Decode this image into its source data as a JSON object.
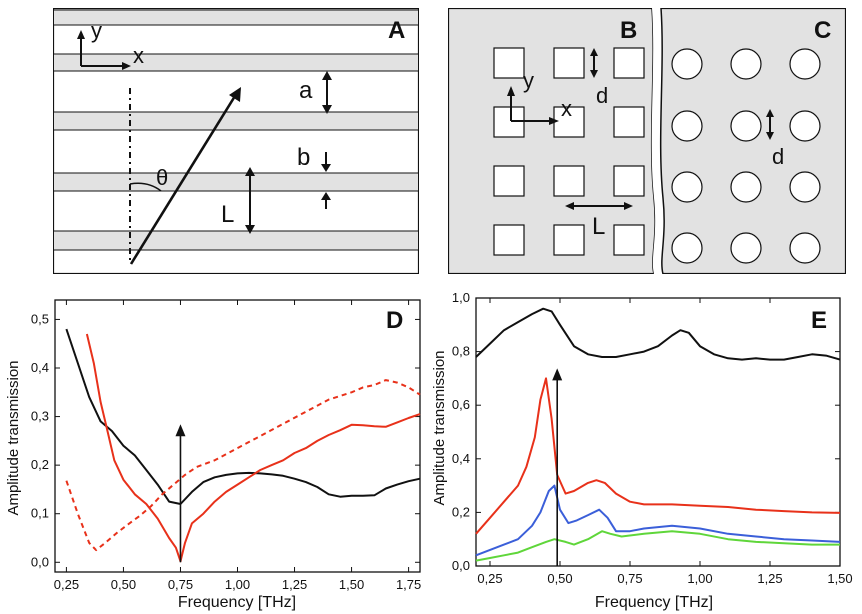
{
  "panel_a": {
    "letter": "A",
    "axis_y": "y",
    "axis_x": "x",
    "label_a": "a",
    "label_b": "b",
    "label_L": "L",
    "label_theta": "θ",
    "stripe_color": "#e2e2e2"
  },
  "panel_bc": {
    "letter_b": "B",
    "letter_c": "C",
    "axis_y": "y",
    "axis_x": "x",
    "label_d_square": "d",
    "label_d_circle": "d",
    "label_L": "L",
    "background_color": "#e2e2e2",
    "hole_color": "#ffffff"
  },
  "chart_data": [
    {
      "type": "line",
      "panel": "D",
      "letter": "D",
      "xlabel": "Frequency [THz]",
      "ylabel": "Amplitude transmission",
      "xlim": [
        0.2,
        1.8
      ],
      "ylim": [
        -0.02,
        0.54
      ],
      "xticks": [
        0.25,
        0.5,
        0.75,
        1.0,
        1.25,
        1.5,
        1.75
      ],
      "xtick_labels": [
        "0,25",
        "0,50",
        "0,75",
        "1,00",
        "1,25",
        "1,50",
        "1,75"
      ],
      "yticks": [
        0.0,
        0.1,
        0.2,
        0.3,
        0.4,
        0.5
      ],
      "ytick_labels": [
        "0,0",
        "0,1",
        "0,2",
        "0,3",
        "0,4",
        "0,5"
      ],
      "arrow": {
        "x": 0.75,
        "y_from": 0.0,
        "y_to": 0.28
      },
      "series": [
        {
          "name": "black",
          "color": "#111111",
          "dash": "",
          "x": [
            0.25,
            0.3,
            0.35,
            0.4,
            0.45,
            0.5,
            0.55,
            0.6,
            0.65,
            0.7,
            0.75,
            0.8,
            0.85,
            0.9,
            0.95,
            1.0,
            1.05,
            1.1,
            1.15,
            1.2,
            1.25,
            1.3,
            1.35,
            1.4,
            1.45,
            1.5,
            1.55,
            1.6,
            1.65,
            1.7,
            1.75,
            1.8
          ],
          "y": [
            0.48,
            0.41,
            0.34,
            0.29,
            0.27,
            0.24,
            0.22,
            0.19,
            0.16,
            0.125,
            0.12,
            0.145,
            0.165,
            0.175,
            0.18,
            0.183,
            0.184,
            0.183,
            0.181,
            0.178,
            0.172,
            0.165,
            0.155,
            0.14,
            0.135,
            0.137,
            0.137,
            0.138,
            0.152,
            0.16,
            0.167,
            0.172
          ]
        },
        {
          "name": "red",
          "color": "#e8311a",
          "dash": "",
          "x": [
            0.34,
            0.37,
            0.4,
            0.43,
            0.46,
            0.5,
            0.55,
            0.6,
            0.65,
            0.7,
            0.73,
            0.75,
            0.77,
            0.8,
            0.85,
            0.9,
            0.95,
            1.0,
            1.05,
            1.1,
            1.15,
            1.2,
            1.25,
            1.3,
            1.35,
            1.4,
            1.45,
            1.5,
            1.55,
            1.6,
            1.65,
            1.7,
            1.75,
            1.8
          ],
          "y": [
            0.47,
            0.41,
            0.33,
            0.27,
            0.21,
            0.17,
            0.14,
            0.12,
            0.09,
            0.05,
            0.03,
            0.002,
            0.04,
            0.08,
            0.1,
            0.125,
            0.145,
            0.16,
            0.175,
            0.19,
            0.2,
            0.21,
            0.225,
            0.235,
            0.25,
            0.262,
            0.272,
            0.283,
            0.282,
            0.28,
            0.279,
            0.288,
            0.297,
            0.305
          ]
        },
        {
          "name": "red-dashed",
          "color": "#e8311a",
          "dash": "5,4",
          "x": [
            0.25,
            0.3,
            0.35,
            0.38,
            0.42,
            0.47,
            0.52,
            0.57,
            0.62,
            0.67,
            0.72,
            0.77,
            0.82,
            0.9,
            1.0,
            1.1,
            1.2,
            1.3,
            1.4,
            1.5,
            1.55,
            1.6,
            1.65,
            1.7,
            1.75,
            1.8
          ],
          "y": [
            0.168,
            0.1,
            0.04,
            0.025,
            0.04,
            0.06,
            0.078,
            0.095,
            0.115,
            0.14,
            0.16,
            0.18,
            0.196,
            0.21,
            0.235,
            0.26,
            0.285,
            0.31,
            0.335,
            0.35,
            0.36,
            0.365,
            0.375,
            0.37,
            0.36,
            0.345
          ]
        }
      ]
    },
    {
      "type": "line",
      "panel": "E",
      "letter": "E",
      "xlabel": "Frequency [THz]",
      "ylabel": "Amplitude transmission",
      "xlim": [
        0.2,
        1.5
      ],
      "ylim": [
        0.0,
        1.0
      ],
      "xticks": [
        0.25,
        0.5,
        0.75,
        1.0,
        1.25,
        1.5
      ],
      "xtick_labels": [
        "0,25",
        "0,50",
        "0,75",
        "1,00",
        "1,25",
        "1,50"
      ],
      "yticks": [
        0.0,
        0.2,
        0.4,
        0.6,
        0.8,
        1.0
      ],
      "ytick_labels": [
        "0,0",
        "0,2",
        "0,4",
        "0,6",
        "0,8",
        "1,0"
      ],
      "arrow": {
        "x": 0.49,
        "y_from": 0.0,
        "y_to": 0.73
      },
      "series": [
        {
          "name": "black",
          "color": "#111111",
          "dash": "",
          "x": [
            0.2,
            0.25,
            0.3,
            0.35,
            0.4,
            0.44,
            0.47,
            0.5,
            0.55,
            0.6,
            0.65,
            0.7,
            0.75,
            0.8,
            0.85,
            0.9,
            0.93,
            0.96,
            1.0,
            1.05,
            1.1,
            1.15,
            1.2,
            1.25,
            1.3,
            1.35,
            1.4,
            1.45,
            1.5
          ],
          "y": [
            0.78,
            0.83,
            0.88,
            0.91,
            0.94,
            0.96,
            0.95,
            0.9,
            0.82,
            0.79,
            0.78,
            0.78,
            0.79,
            0.8,
            0.82,
            0.86,
            0.88,
            0.87,
            0.82,
            0.79,
            0.775,
            0.77,
            0.775,
            0.77,
            0.77,
            0.78,
            0.79,
            0.785,
            0.77
          ]
        },
        {
          "name": "red",
          "color": "#e8311a",
          "dash": "",
          "x": [
            0.2,
            0.25,
            0.3,
            0.35,
            0.38,
            0.41,
            0.43,
            0.45,
            0.47,
            0.49,
            0.52,
            0.55,
            0.6,
            0.63,
            0.66,
            0.7,
            0.75,
            0.8,
            0.9,
            1.0,
            1.1,
            1.2,
            1.3,
            1.4,
            1.5
          ],
          "y": [
            0.12,
            0.18,
            0.24,
            0.3,
            0.37,
            0.48,
            0.62,
            0.7,
            0.55,
            0.34,
            0.27,
            0.28,
            0.31,
            0.32,
            0.31,
            0.27,
            0.24,
            0.23,
            0.23,
            0.225,
            0.22,
            0.21,
            0.205,
            0.2,
            0.198
          ]
        },
        {
          "name": "blue",
          "color": "#3b5fd9",
          "dash": "",
          "x": [
            0.2,
            0.25,
            0.3,
            0.35,
            0.4,
            0.43,
            0.46,
            0.48,
            0.5,
            0.53,
            0.56,
            0.6,
            0.64,
            0.67,
            0.7,
            0.75,
            0.8,
            0.9,
            1.0,
            1.1,
            1.2,
            1.3,
            1.4,
            1.5
          ],
          "y": [
            0.04,
            0.06,
            0.08,
            0.1,
            0.15,
            0.2,
            0.28,
            0.3,
            0.21,
            0.16,
            0.17,
            0.19,
            0.21,
            0.18,
            0.13,
            0.13,
            0.14,
            0.15,
            0.14,
            0.12,
            0.11,
            0.1,
            0.095,
            0.09
          ]
        },
        {
          "name": "green",
          "color": "#5fd63a",
          "dash": "",
          "x": [
            0.2,
            0.25,
            0.3,
            0.35,
            0.4,
            0.45,
            0.48,
            0.52,
            0.55,
            0.6,
            0.65,
            0.68,
            0.72,
            0.8,
            0.9,
            1.0,
            1.1,
            1.2,
            1.3,
            1.4,
            1.5
          ],
          "y": [
            0.02,
            0.03,
            0.04,
            0.05,
            0.07,
            0.09,
            0.1,
            0.09,
            0.08,
            0.1,
            0.13,
            0.12,
            0.11,
            0.12,
            0.13,
            0.12,
            0.1,
            0.09,
            0.085,
            0.08,
            0.08
          ]
        }
      ]
    }
  ]
}
